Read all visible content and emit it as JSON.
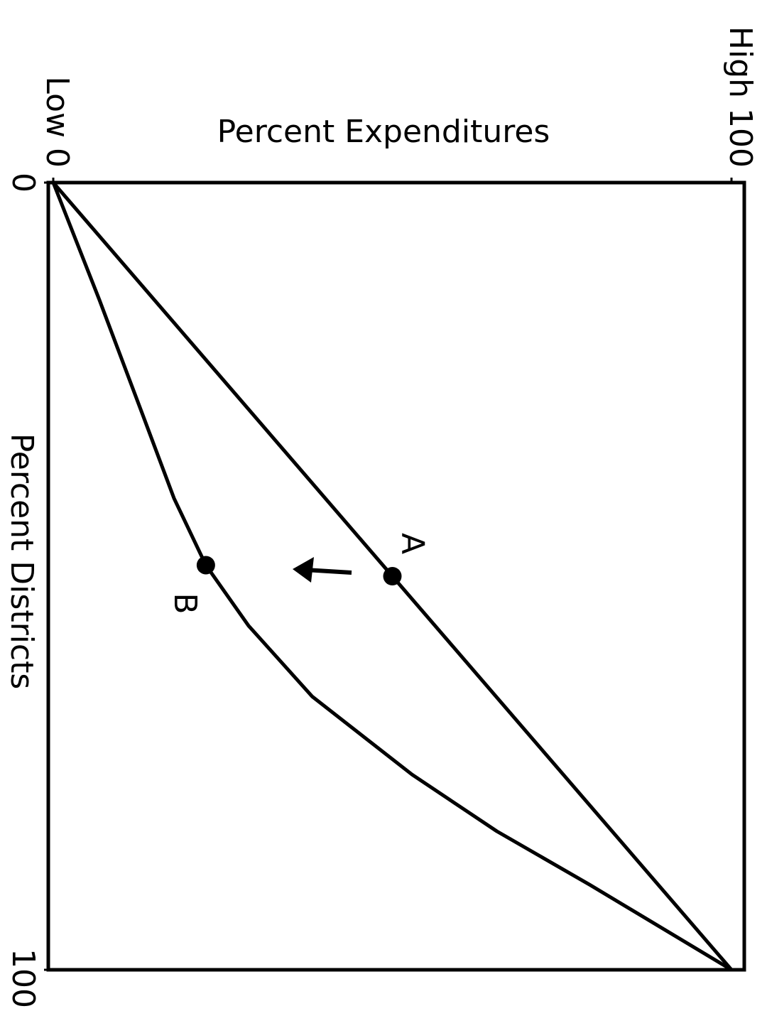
{
  "chart_data": {
    "type": "line",
    "title": "Percent Expenditures",
    "xlabel": "Percent Districts",
    "xlim": [
      0,
      100
    ],
    "xticks": [
      0,
      100
    ],
    "ylim": [
      0,
      100
    ],
    "yticks": [
      {
        "value": 0,
        "label": "Low 0"
      },
      {
        "value": 100,
        "label": "High 100"
      }
    ],
    "series": [
      {
        "color": "#000000",
        "x": [
          0,
          100
        ],
        "values": [
          0,
          100
        ]
      },
      {
        "color": "#000000",
        "x": [
          0,
          14.9,
          29.3,
          40.1,
          48.6,
          56.3,
          65.3,
          75.2,
          82.4,
          89.2,
          100
        ],
        "values": [
          0,
          6.8,
          13.1,
          17.8,
          22.5,
          28.8,
          38.2,
          52.9,
          65.4,
          79.1,
          100
        ]
      }
    ],
    "points": [
      {
        "label": "A",
        "x": 50,
        "y": 50
      },
      {
        "label": "B",
        "x": 48.6,
        "y": 22.5
      }
    ]
  }
}
